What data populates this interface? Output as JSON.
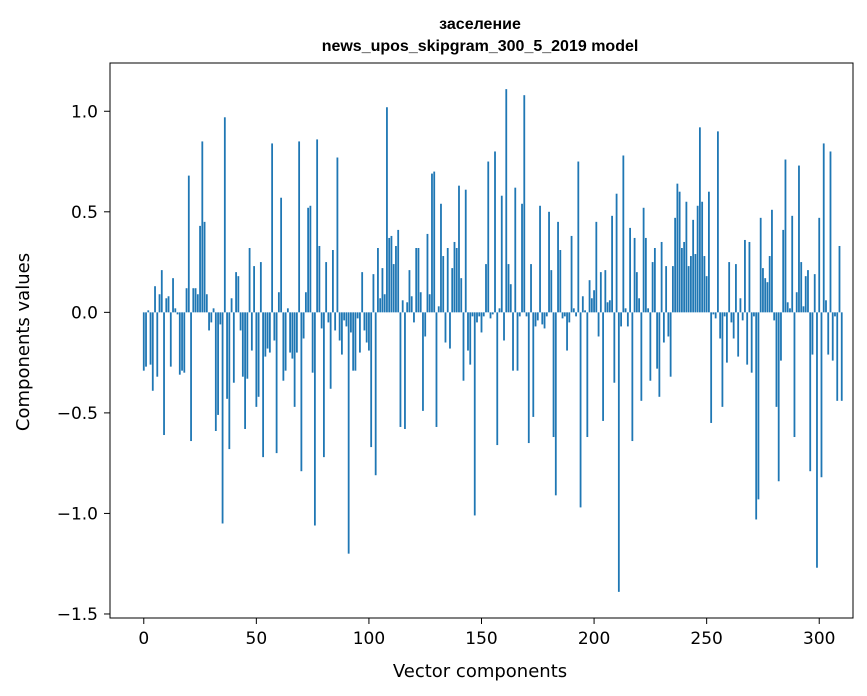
{
  "chart_data": {
    "type": "bar",
    "title": "заселение",
    "subtitle": "news_upos_skipgram_300_5_2019 model",
    "xlabel": "Vector components",
    "ylabel": "Components values",
    "xlim": [
      -15,
      315
    ],
    "ylim": [
      -1.52,
      1.24
    ],
    "xticks": [
      0,
      50,
      100,
      150,
      200,
      250,
      300
    ],
    "yticks": [
      -1.5,
      -1.0,
      -0.5,
      0.0,
      0.5,
      1.0
    ],
    "ytick_labels": [
      "−1.5",
      "−1.0",
      "−0.5",
      "0.0",
      "0.5",
      "1.0"
    ],
    "grid": false,
    "color": "#1f77b4",
    "values": [
      -0.29,
      -0.27,
      0.01,
      -0.26,
      -0.39,
      0.13,
      -0.32,
      0.09,
      0.21,
      -0.61,
      0.07,
      0.08,
      -0.27,
      0.17,
      0.02,
      -0.01,
      -0.31,
      -0.29,
      -0.3,
      0.12,
      0.68,
      -0.64,
      0.12,
      0.12,
      0.09,
      0.43,
      0.85,
      0.45,
      0.09,
      -0.09,
      -0.05,
      0.02,
      -0.59,
      -0.51,
      -0.06,
      -1.05,
      0.97,
      -0.43,
      -0.68,
      0.07,
      -0.35,
      0.2,
      0.18,
      -0.09,
      -0.32,
      -0.58,
      -0.33,
      0.32,
      -0.19,
      0.23,
      -0.47,
      -0.42,
      0.25,
      -0.72,
      -0.22,
      -0.18,
      -0.2,
      0.84,
      -0.14,
      -0.7,
      0.1,
      0.57,
      -0.34,
      -0.29,
      0.02,
      -0.2,
      -0.23,
      -0.47,
      -0.2,
      0.85,
      -0.79,
      -0.13,
      0.1,
      0.52,
      0.53,
      -0.3,
      -1.06,
      0.86,
      0.33,
      -0.08,
      -0.72,
      0.25,
      -0.05,
      -0.38,
      0.31,
      -0.09,
      0.77,
      -0.14,
      -0.21,
      -0.04,
      -0.07,
      -1.2,
      -0.1,
      -0.29,
      -0.29,
      -0.03,
      -0.2,
      0.2,
      -0.09,
      -0.15,
      -0.19,
      -0.67,
      0.19,
      -0.81,
      0.32,
      0.07,
      0.22,
      0.09,
      1.02,
      0.37,
      0.38,
      0.24,
      0.33,
      0.41,
      -0.57,
      0.06,
      -0.58,
      0.05,
      0.21,
      0.08,
      -0.05,
      0.32,
      0.32,
      0.1,
      -0.49,
      -0.12,
      0.39,
      0.09,
      0.69,
      0.7,
      -0.57,
      0.03,
      0.54,
      0.28,
      -0.15,
      0.32,
      -0.18,
      0.22,
      0.35,
      0.32,
      0.63,
      0.17,
      -0.34,
      0.61,
      -0.19,
      -0.26,
      -0.02,
      -1.01,
      -0.05,
      -0.02,
      -0.1,
      -0.02,
      0.24,
      0.75,
      -0.03,
      -0.01,
      0.8,
      -0.66,
      0.02,
      0.58,
      -0.14,
      1.11,
      0.24,
      0.14,
      -0.29,
      0.62,
      -0.29,
      -0.02,
      0.54,
      1.08,
      -0.02,
      -0.65,
      0.24,
      -0.52,
      -0.07,
      -0.04,
      0.53,
      -0.06,
      -0.08,
      -0.02,
      0.5,
      0.21,
      -0.62,
      -0.91,
      0.45,
      0.31,
      -0.03,
      -0.02,
      -0.19,
      -0.05,
      0.38,
      0.02,
      -0.02,
      0.75,
      -0.97,
      0.08,
      0.01,
      -0.62,
      0.16,
      0.07,
      0.11,
      0.45,
      -0.12,
      0.2,
      -0.54,
      0.21,
      0.05,
      0.06,
      0.48,
      -0.35,
      0.59,
      -1.39,
      -0.07,
      0.78,
      0.02,
      -0.07,
      0.42,
      -0.64,
      0.37,
      0.2,
      0.07,
      -0.44,
      0.52,
      0.37,
      0.02,
      -0.34,
      0.25,
      0.32,
      -0.28,
      -0.42,
      0.35,
      -0.15,
      0.23,
      -0.12,
      -0.32,
      0.23,
      0.47,
      0.64,
      0.6,
      0.32,
      0.35,
      0.55,
      0.23,
      0.28,
      0.46,
      0.29,
      0.53,
      0.92,
      0.55,
      0.28,
      0.18,
      0.6,
      -0.55,
      -0.01,
      -0.03,
      0.9,
      -0.13,
      -0.47,
      -0.02,
      -0.25,
      0.25,
      -0.05,
      -0.13,
      0.24,
      -0.22,
      0.07,
      -0.04,
      0.36,
      -0.26,
      0.35,
      -0.3,
      -0.02,
      -1.03,
      -0.93,
      0.47,
      0.22,
      0.17,
      0.15,
      0.28,
      0.51,
      -0.04,
      -0.47,
      -0.84,
      -0.24,
      0.41,
      0.76,
      0.05,
      0.02,
      0.48,
      -0.62,
      0.1,
      0.73,
      0.25,
      0.03,
      0.18,
      0.21,
      -0.79,
      -0.21,
      0.19,
      -1.27,
      0.47,
      -0.82,
      0.84,
      0.06,
      -0.21,
      0.8,
      -0.24,
      -0.02,
      -0.44,
      0.33,
      -0.44
    ]
  }
}
